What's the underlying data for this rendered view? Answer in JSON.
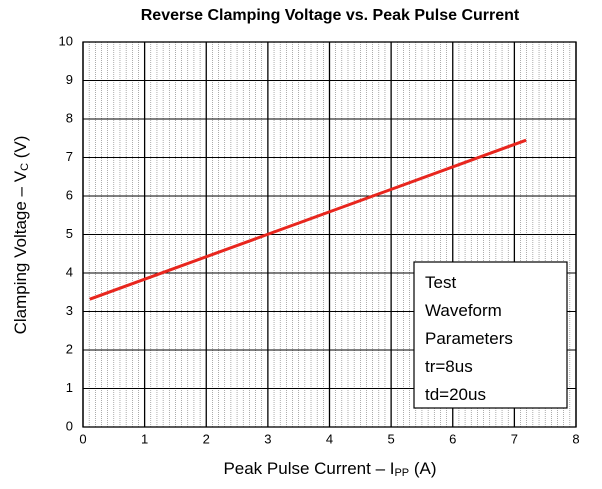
{
  "chart_data": {
    "type": "line",
    "title": "Reverse Clamping Voltage vs. Peak Pulse Current",
    "xlabel": [
      "Peak Pulse Current – I",
      "PP",
      " (A)"
    ],
    "ylabel": [
      "Clamping Voltage – V",
      "C",
      " (V)"
    ],
    "x": [
      0.11,
      7.19
    ],
    "values": [
      3.32,
      7.45
    ],
    "color": "#e8261e",
    "xlim": [
      0,
      8
    ],
    "xticks": [
      0,
      1,
      2,
      3,
      4,
      5,
      6,
      7,
      8
    ],
    "ylim": [
      0,
      10
    ],
    "yticks": [
      0,
      1,
      2,
      3,
      4,
      5,
      6,
      7,
      8,
      9,
      10
    ],
    "grid": true,
    "minor_grid": true,
    "annotations": [
      "Test",
      "Waveform",
      "Parameters",
      "tr=8us",
      "td=20us"
    ]
  }
}
